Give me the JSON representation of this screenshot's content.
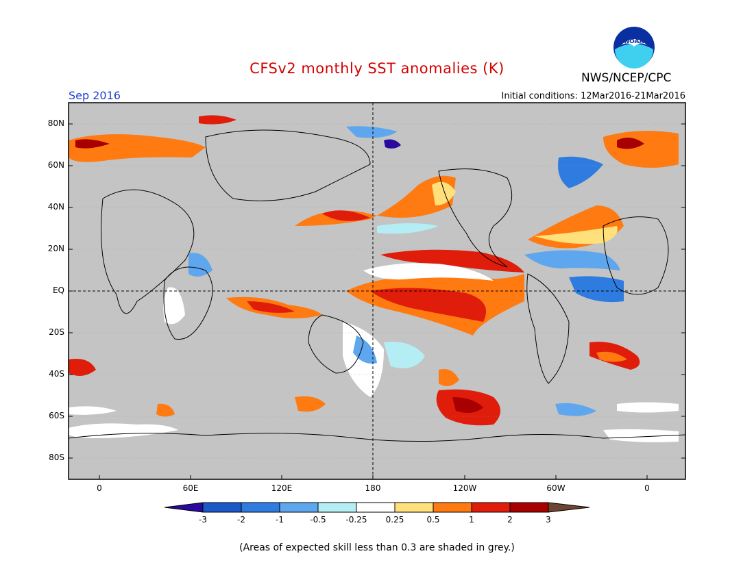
{
  "header": {
    "title": "CFSv2 monthly SST anomalies (K)",
    "org": "NWS/NCEP/CPC",
    "logo_text": "NOAA",
    "month": "Sep 2016",
    "initial_conditions": "Initial conditions: 12Mar2016-21Mar2016"
  },
  "axes": {
    "lat_labels": [
      "80N",
      "60N",
      "40N",
      "20N",
      "EQ",
      "20S",
      "40S",
      "60S",
      "80S"
    ],
    "lon_labels": [
      "0",
      "60E",
      "120E",
      "180",
      "120W",
      "60W",
      "0"
    ]
  },
  "colorbar": {
    "labels": [
      "-3",
      "-2",
      "-1",
      "-0.5",
      "-0.25",
      "0.25",
      "0.5",
      "1",
      "2",
      "3"
    ],
    "colors": [
      "#2a0a9c",
      "#1c58c8",
      "#2f7ce0",
      "#5ea6ee",
      "#b4eef4",
      "#ffffff",
      "#ffe07a",
      "#ff7a10",
      "#e01c0a",
      "#a80000",
      "#6e4432"
    ]
  },
  "footnote": "(Areas of expected skill less than 0.3 are shaded in grey.)",
  "colors": {
    "land_bg": "#c4c4c4",
    "title": "#d40000",
    "month": "#1a3fd0"
  }
}
